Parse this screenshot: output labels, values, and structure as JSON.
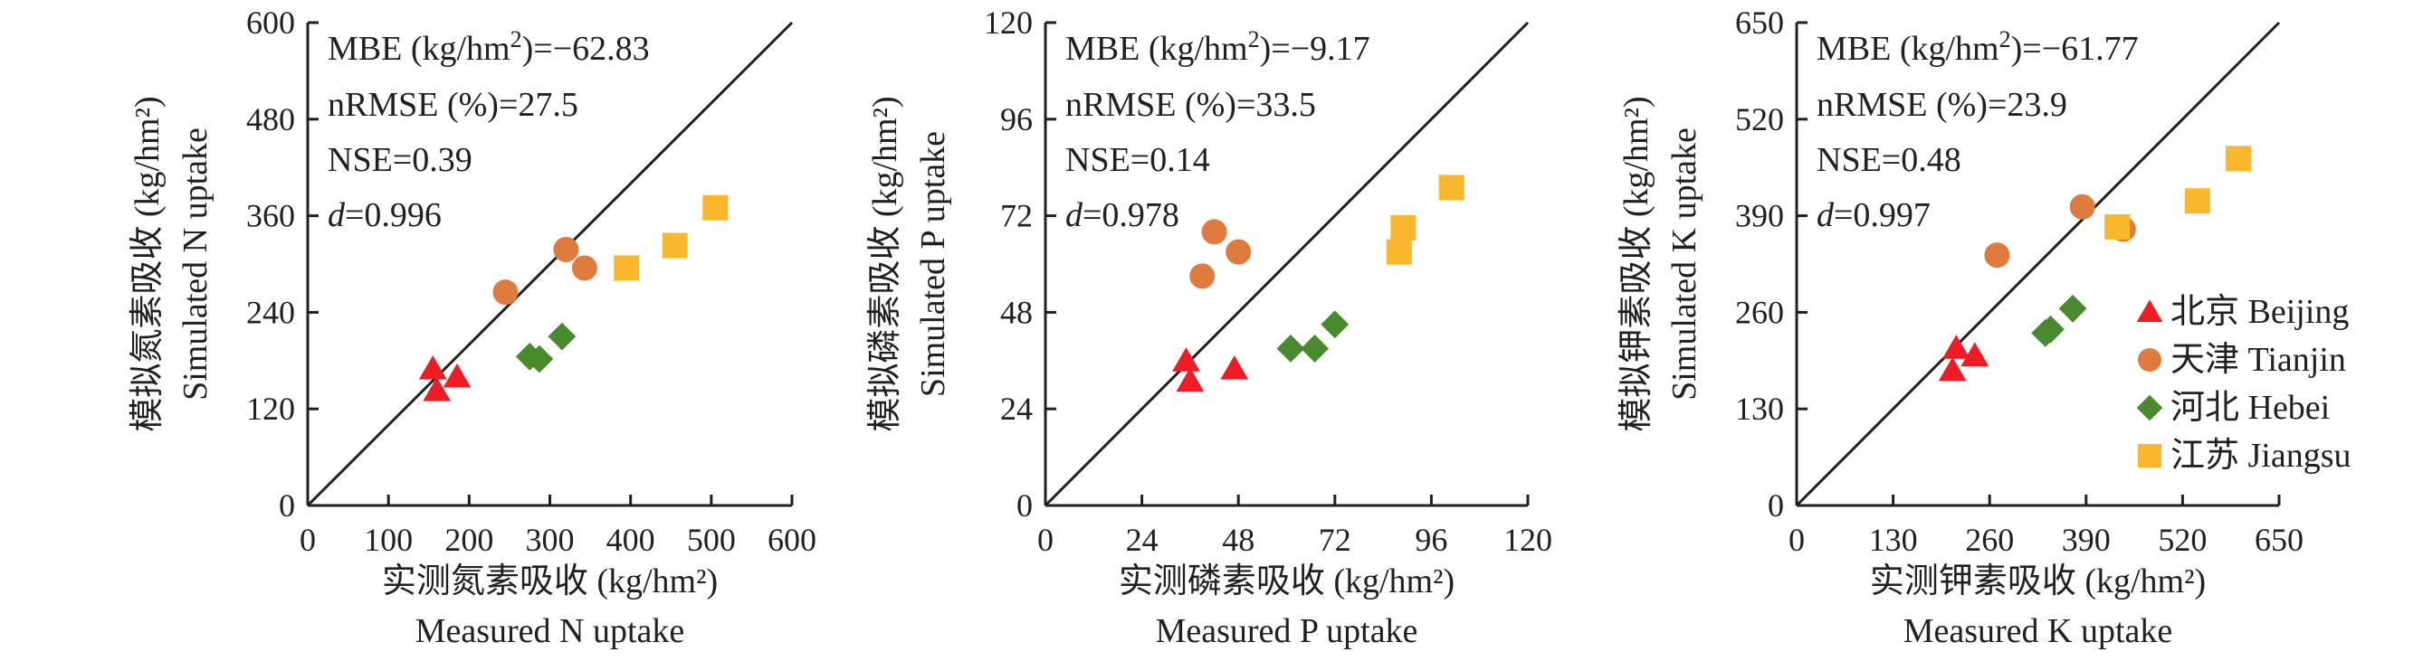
{
  "colors": {
    "Beijing": "#ee1c25",
    "Tianjin": "#e07b40",
    "Hebei": "#4a8a2e",
    "Jiangsu": "#f9b72d",
    "axis": "#231f20"
  },
  "legend": {
    "position": "right, middle (third panel)",
    "items": [
      {
        "key": "Beijing",
        "marker": "triangle",
        "label": "北京 Beijing"
      },
      {
        "key": "Tianjin",
        "marker": "circle",
        "label": "天津 Tianjin"
      },
      {
        "key": "Hebei",
        "marker": "diamond",
        "label": "河北 Hebei"
      },
      {
        "key": "Jiangsu",
        "marker": "square",
        "label": "江苏 Jiangsu"
      }
    ]
  },
  "chart_data": [
    {
      "type": "scatter",
      "nutrient": "N",
      "xlabel_cn": "实测氮素吸收 (kg/hm²)",
      "xlabel_en": "Measured N uptake",
      "ylabel_cn": "模拟氮素吸收 (kg/hm²)",
      "ylabel_en": "Simulated N uptake",
      "xlim": [
        0,
        600
      ],
      "ylim": [
        0,
        600
      ],
      "xticks": [
        0,
        100,
        200,
        300,
        400,
        500,
        600
      ],
      "yticks": [
        0,
        120,
        240,
        360,
        480,
        600
      ],
      "one_to_one_line": true,
      "stats": {
        "mbe_label": "MBE (kg/hm",
        "mbe_sup": "2",
        "mbe_value": ")=−62.83",
        "nrmse": "nRMSE (%)=27.5",
        "nse": "NSE=0.39",
        "d_label": "d",
        "d_value": "=0.996"
      },
      "series": [
        {
          "name": "北京 Beijing",
          "key": "Beijing",
          "points": [
            [
              155,
              170
            ],
            [
              160,
              143
            ],
            [
              185,
              160
            ]
          ]
        },
        {
          "name": "天津 Tianjin",
          "key": "Tianjin",
          "points": [
            [
              245,
              265
            ],
            [
              320,
              318
            ],
            [
              343,
              295
            ]
          ]
        },
        {
          "name": "河北 Hebei",
          "key": "Hebei",
          "points": [
            [
              275,
              185
            ],
            [
              287,
              182
            ],
            [
              315,
              210
            ]
          ]
        },
        {
          "name": "江苏 Jiangsu",
          "key": "Jiangsu",
          "points": [
            [
              395,
              295
            ],
            [
              455,
              323
            ],
            [
              505,
              370
            ]
          ]
        }
      ]
    },
    {
      "type": "scatter",
      "nutrient": "P",
      "xlabel_cn": "实测磷素吸收 (kg/hm²)",
      "xlabel_en": "Measured P uptake",
      "ylabel_cn": "模拟磷素吸收 (kg/hm²)",
      "ylabel_en": "Simulated P uptake",
      "xlim": [
        0,
        120
      ],
      "ylim": [
        0,
        120
      ],
      "xticks": [
        0,
        24,
        48,
        72,
        96,
        120
      ],
      "yticks": [
        0,
        24,
        48,
        72,
        96,
        120
      ],
      "one_to_one_line": true,
      "stats": {
        "mbe_label": "MBE (kg/hm",
        "mbe_sup": "2",
        "mbe_value": ")=−9.17",
        "nrmse": "nRMSE (%)=33.5",
        "nse": "NSE=0.14",
        "d_label": "d",
        "d_value": "=0.978"
      },
      "series": [
        {
          "name": "北京 Beijing",
          "key": "Beijing",
          "points": [
            [
              35,
              36
            ],
            [
              36,
              31
            ],
            [
              47,
              34
            ]
          ]
        },
        {
          "name": "天津 Tianjin",
          "key": "Tianjin",
          "points": [
            [
              39,
              57
            ],
            [
              42,
              68
            ],
            [
              48,
              63
            ]
          ]
        },
        {
          "name": "河北 Hebei",
          "key": "Hebei",
          "points": [
            [
              61,
              39
            ],
            [
              67,
              39
            ],
            [
              72,
              45
            ]
          ]
        },
        {
          "name": "江苏 Jiangsu",
          "key": "Jiangsu",
          "points": [
            [
              88,
              63
            ],
            [
              89,
              69
            ],
            [
              101,
              79
            ]
          ]
        }
      ]
    },
    {
      "type": "scatter",
      "nutrient": "K",
      "xlabel_cn": "实测钾素吸收 (kg/hm²)",
      "xlabel_en": "Measured K uptake",
      "ylabel_cn": "模拟钾素吸收 (kg/hm²)",
      "ylabel_en": "Simulated K uptake",
      "xlim": [
        0,
        650
      ],
      "ylim": [
        0,
        650
      ],
      "xticks": [
        0,
        130,
        260,
        390,
        520,
        650
      ],
      "yticks": [
        0,
        130,
        260,
        390,
        520,
        650
      ],
      "one_to_one_line": true,
      "stats": {
        "mbe_label": "MBE (kg/hm",
        "mbe_sup": "2",
        "mbe_value": ")=−61.77",
        "nrmse": "nRMSE (%)=23.9",
        "nse": "NSE=0.48",
        "d_label": "d",
        "d_value": "=0.997"
      },
      "series": [
        {
          "name": "北京 Beijing",
          "key": "Beijing",
          "points": [
            [
              210,
              182
            ],
            [
              215,
              212
            ],
            [
              240,
              202
            ]
          ]
        },
        {
          "name": "天津 Tianjin",
          "key": "Tianjin",
          "points": [
            [
              270,
              337
            ],
            [
              385,
              402
            ],
            [
              440,
              372
            ]
          ]
        },
        {
          "name": "河北 Hebei",
          "key": "Hebei",
          "points": [
            [
              335,
              232
            ],
            [
              342,
              237
            ],
            [
              372,
              265
            ]
          ]
        },
        {
          "name": "江苏 Jiangsu",
          "key": "Jiangsu",
          "points": [
            [
              432,
              375
            ],
            [
              540,
              410
            ],
            [
              595,
              467
            ]
          ]
        }
      ]
    }
  ]
}
